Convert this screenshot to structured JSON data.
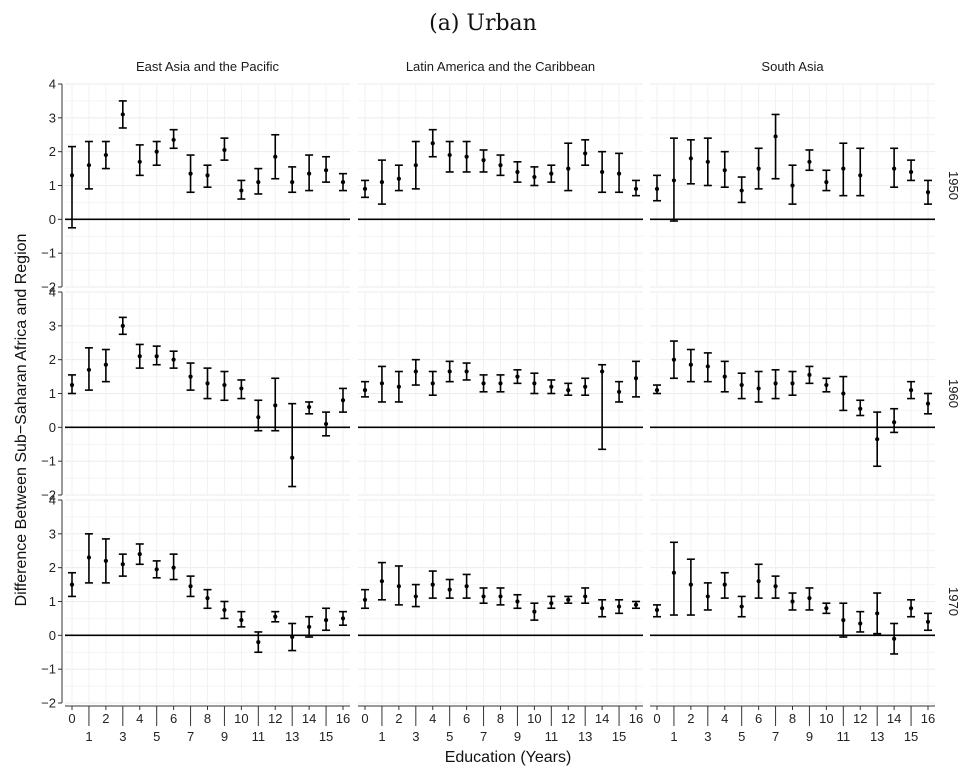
{
  "figure_title": "(a) Urban",
  "chart_data": {
    "type": "errorbar",
    "title": "(a) Urban",
    "xlabel": "Education (Years)",
    "ylabel": "Difference Between Sub−Saharan Africa and Region",
    "x": [
      0,
      1,
      2,
      3,
      4,
      5,
      6,
      7,
      8,
      9,
      10,
      11,
      12,
      13,
      14,
      15,
      16
    ],
    "x_tick_labels_row1": [
      "0",
      "2",
      "4",
      "6",
      "8",
      "10",
      "12",
      "14",
      "16"
    ],
    "x_tick_labels_row2": [
      "1",
      "3",
      "5",
      "7",
      "9",
      "11",
      "13",
      "15"
    ],
    "ylim": [
      -2,
      4
    ],
    "y_ticks": [
      "-2",
      "-1",
      "0",
      "1",
      "2",
      "3",
      "4"
    ],
    "reference_line": 0,
    "grid": true,
    "columns": [
      "East Asia and the Pacific",
      "Latin America and the Caribbean",
      "South Asia"
    ],
    "rows": [
      "1950",
      "1960",
      "1970"
    ],
    "panels": [
      {
        "row": "1950",
        "column": "East Asia and the Pacific",
        "points": [
          [
            0,
            1.3,
            -0.25,
            2.15
          ],
          [
            1,
            1.6,
            0.9,
            2.3
          ],
          [
            2,
            1.9,
            1.5,
            2.3
          ],
          [
            3,
            3.1,
            2.7,
            3.5
          ],
          [
            4,
            1.7,
            1.3,
            2.2
          ],
          [
            5,
            2.0,
            1.6,
            2.3
          ],
          [
            6,
            2.35,
            2.1,
            2.65
          ],
          [
            7,
            1.35,
            0.8,
            1.9
          ],
          [
            8,
            1.3,
            0.95,
            1.6
          ],
          [
            9,
            2.05,
            1.75,
            2.4
          ],
          [
            10,
            0.85,
            0.6,
            1.15
          ],
          [
            11,
            1.1,
            0.75,
            1.5
          ],
          [
            12,
            1.85,
            1.2,
            2.5
          ],
          [
            13,
            1.1,
            0.8,
            1.55
          ],
          [
            14,
            1.35,
            0.85,
            1.9
          ],
          [
            15,
            1.45,
            1.1,
            1.85
          ],
          [
            16,
            1.1,
            0.85,
            1.35
          ]
        ]
      },
      {
        "row": "1950",
        "column": "Latin America and the Caribbean",
        "points": [
          [
            0,
            0.9,
            0.65,
            1.15
          ],
          [
            1,
            1.1,
            0.45,
            1.75
          ],
          [
            2,
            1.2,
            0.85,
            1.6
          ],
          [
            3,
            1.6,
            0.9,
            2.3
          ],
          [
            4,
            2.25,
            1.85,
            2.65
          ],
          [
            5,
            1.9,
            1.4,
            2.3
          ],
          [
            6,
            1.85,
            1.4,
            2.3
          ],
          [
            7,
            1.75,
            1.4,
            2.05
          ],
          [
            8,
            1.6,
            1.3,
            1.9
          ],
          [
            9,
            1.4,
            1.1,
            1.7
          ],
          [
            10,
            1.25,
            1.0,
            1.55
          ],
          [
            11,
            1.35,
            1.1,
            1.6
          ],
          [
            12,
            1.5,
            0.85,
            2.25
          ],
          [
            13,
            1.95,
            1.6,
            2.35
          ],
          [
            14,
            1.4,
            0.8,
            2.0
          ],
          [
            15,
            1.35,
            0.8,
            1.95
          ],
          [
            16,
            0.9,
            0.7,
            1.15
          ]
        ]
      },
      {
        "row": "1950",
        "column": "South Asia",
        "points": [
          [
            0,
            0.9,
            0.55,
            1.3
          ],
          [
            1,
            1.15,
            -0.05,
            2.4
          ],
          [
            2,
            1.8,
            1.05,
            2.35
          ],
          [
            3,
            1.7,
            1.0,
            2.4
          ],
          [
            4,
            1.45,
            0.95,
            2.0
          ],
          [
            5,
            0.85,
            0.5,
            1.25
          ],
          [
            6,
            1.5,
            0.9,
            2.1
          ],
          [
            7,
            2.45,
            1.2,
            3.1
          ],
          [
            8,
            1.0,
            0.45,
            1.6
          ],
          [
            9,
            1.7,
            1.45,
            2.05
          ],
          [
            10,
            1.1,
            0.85,
            1.45
          ],
          [
            11,
            1.5,
            0.7,
            2.25
          ],
          [
            12,
            1.3,
            0.7,
            2.1
          ],
          [
            14,
            1.5,
            0.95,
            2.1
          ],
          [
            15,
            1.4,
            1.15,
            1.75
          ],
          [
            16,
            0.8,
            0.45,
            1.15
          ]
        ]
      },
      {
        "row": "1960",
        "column": "East Asia and the Pacific",
        "points": [
          [
            0,
            1.25,
            1.0,
            1.55
          ],
          [
            1,
            1.7,
            1.1,
            2.35
          ],
          [
            2,
            1.85,
            1.35,
            2.3
          ],
          [
            3,
            3.0,
            2.75,
            3.25
          ],
          [
            4,
            2.1,
            1.75,
            2.45
          ],
          [
            5,
            2.1,
            1.85,
            2.4
          ],
          [
            6,
            2.0,
            1.75,
            2.25
          ],
          [
            7,
            1.5,
            1.1,
            1.9
          ],
          [
            8,
            1.3,
            0.85,
            1.75
          ],
          [
            9,
            1.25,
            0.8,
            1.65
          ],
          [
            10,
            1.15,
            0.85,
            1.4
          ],
          [
            11,
            0.3,
            -0.1,
            0.8
          ],
          [
            12,
            0.65,
            -0.1,
            1.45
          ],
          [
            13,
            -0.9,
            -1.75,
            0.7
          ],
          [
            14,
            0.6,
            0.4,
            0.75
          ],
          [
            15,
            0.1,
            -0.25,
            0.45
          ],
          [
            16,
            0.8,
            0.45,
            1.15
          ]
        ]
      },
      {
        "row": "1960",
        "column": "Latin America and the Caribbean",
        "points": [
          [
            0,
            1.1,
            0.9,
            1.35
          ],
          [
            1,
            1.3,
            0.75,
            1.8
          ],
          [
            2,
            1.2,
            0.75,
            1.65
          ],
          [
            3,
            1.65,
            1.25,
            2.0
          ],
          [
            4,
            1.3,
            0.95,
            1.65
          ],
          [
            5,
            1.65,
            1.35,
            1.95
          ],
          [
            6,
            1.65,
            1.4,
            1.9
          ],
          [
            7,
            1.3,
            1.05,
            1.55
          ],
          [
            8,
            1.3,
            1.05,
            1.55
          ],
          [
            9,
            1.5,
            1.3,
            1.7
          ],
          [
            10,
            1.3,
            1.0,
            1.6
          ],
          [
            11,
            1.2,
            1.0,
            1.4
          ],
          [
            12,
            1.1,
            0.95,
            1.3
          ],
          [
            13,
            1.2,
            0.95,
            1.45
          ],
          [
            14,
            1.65,
            -0.65,
            1.85
          ],
          [
            15,
            1.05,
            0.75,
            1.35
          ],
          [
            16,
            1.45,
            0.9,
            1.95
          ]
        ]
      },
      {
        "row": "1960",
        "column": "South Asia",
        "points": [
          [
            0,
            1.1,
            1.0,
            1.25
          ],
          [
            1,
            2.0,
            1.45,
            2.55
          ],
          [
            2,
            1.85,
            1.35,
            2.3
          ],
          [
            3,
            1.8,
            1.35,
            2.2
          ],
          [
            4,
            1.5,
            1.05,
            1.95
          ],
          [
            5,
            1.25,
            0.85,
            1.6
          ],
          [
            6,
            1.15,
            0.75,
            1.65
          ],
          [
            7,
            1.3,
            0.85,
            1.7
          ],
          [
            8,
            1.3,
            0.95,
            1.65
          ],
          [
            9,
            1.55,
            1.3,
            1.8
          ],
          [
            10,
            1.25,
            1.05,
            1.45
          ],
          [
            11,
            1.0,
            0.5,
            1.5
          ],
          [
            12,
            0.55,
            0.35,
            0.8
          ],
          [
            13,
            -0.35,
            -1.15,
            0.45
          ],
          [
            14,
            0.15,
            -0.15,
            0.55
          ],
          [
            15,
            1.1,
            0.85,
            1.35
          ],
          [
            16,
            0.7,
            0.4,
            1.0
          ]
        ]
      },
      {
        "row": "1970",
        "column": "East Asia and the Pacific",
        "points": [
          [
            0,
            1.5,
            1.15,
            1.85
          ],
          [
            1,
            2.3,
            1.55,
            3.0
          ],
          [
            2,
            2.2,
            1.55,
            2.85
          ],
          [
            3,
            2.1,
            1.75,
            2.4
          ],
          [
            4,
            2.4,
            2.1,
            2.7
          ],
          [
            5,
            1.95,
            1.7,
            2.2
          ],
          [
            6,
            2.0,
            1.65,
            2.4
          ],
          [
            7,
            1.45,
            1.15,
            1.75
          ],
          [
            8,
            1.1,
            0.8,
            1.35
          ],
          [
            9,
            0.75,
            0.5,
            1.0
          ],
          [
            10,
            0.45,
            0.25,
            0.7
          ],
          [
            11,
            -0.2,
            -0.5,
            0.1
          ],
          [
            12,
            0.55,
            0.4,
            0.7
          ],
          [
            13,
            -0.05,
            -0.45,
            0.35
          ],
          [
            14,
            0.25,
            -0.05,
            0.55
          ],
          [
            15,
            0.45,
            0.15,
            0.8
          ],
          [
            16,
            0.5,
            0.3,
            0.7
          ]
        ]
      },
      {
        "row": "1970",
        "column": "Latin America and the Caribbean",
        "points": [
          [
            0,
            1.05,
            0.8,
            1.35
          ],
          [
            1,
            1.6,
            1.05,
            2.15
          ],
          [
            2,
            1.45,
            0.9,
            2.05
          ],
          [
            3,
            1.15,
            0.85,
            1.5
          ],
          [
            4,
            1.5,
            1.1,
            1.9
          ],
          [
            5,
            1.35,
            1.1,
            1.65
          ],
          [
            6,
            1.45,
            1.1,
            1.8
          ],
          [
            7,
            1.15,
            0.95,
            1.4
          ],
          [
            8,
            1.15,
            0.9,
            1.4
          ],
          [
            9,
            1.0,
            0.8,
            1.2
          ],
          [
            10,
            0.7,
            0.45,
            0.95
          ],
          [
            11,
            0.95,
            0.8,
            1.15
          ],
          [
            12,
            1.05,
            0.95,
            1.15
          ],
          [
            13,
            1.15,
            0.95,
            1.4
          ],
          [
            14,
            0.8,
            0.55,
            1.05
          ],
          [
            15,
            0.85,
            0.65,
            1.05
          ],
          [
            16,
            0.9,
            0.8,
            1.0
          ]
        ]
      },
      {
        "row": "1970",
        "column": "South Asia",
        "points": [
          [
            0,
            0.75,
            0.55,
            0.9
          ],
          [
            1,
            1.85,
            0.6,
            2.75
          ],
          [
            2,
            1.5,
            0.6,
            2.25
          ],
          [
            3,
            1.15,
            0.75,
            1.55
          ],
          [
            4,
            1.5,
            1.1,
            1.85
          ],
          [
            5,
            0.85,
            0.55,
            1.15
          ],
          [
            6,
            1.6,
            1.1,
            2.1
          ],
          [
            7,
            1.45,
            1.1,
            1.75
          ],
          [
            8,
            1.0,
            0.75,
            1.25
          ],
          [
            9,
            1.1,
            0.75,
            1.4
          ],
          [
            10,
            0.8,
            0.65,
            0.95
          ],
          [
            11,
            0.45,
            -0.05,
            0.95
          ],
          [
            12,
            0.35,
            0.1,
            0.7
          ],
          [
            13,
            0.65,
            0.05,
            1.25
          ],
          [
            14,
            -0.1,
            -0.55,
            0.35
          ],
          [
            15,
            0.8,
            0.55,
            1.05
          ],
          [
            16,
            0.4,
            0.15,
            0.65
          ]
        ]
      }
    ]
  }
}
